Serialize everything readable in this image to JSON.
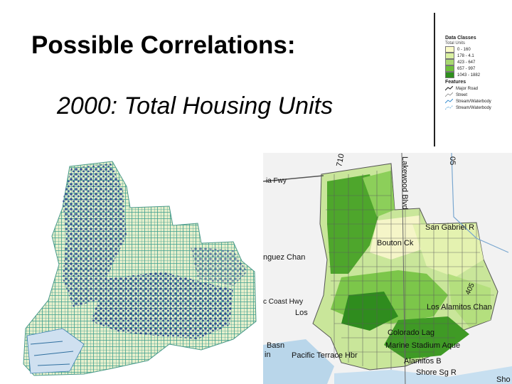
{
  "slide": {
    "title": "Possible Correlations:",
    "subtitle": "2000: Total Housing Units"
  },
  "legend": {
    "data_classes_title": "Data Classes",
    "data_classes_subtitle": "Total Units",
    "classes": [
      {
        "label": "0 - 160",
        "color": "#fbfbc8"
      },
      {
        "label": "178 - 4.1",
        "color": "#d9f0a0"
      },
      {
        "label": "423 - 647",
        "color": "#a8d870"
      },
      {
        "label": "657 - 997",
        "color": "#6dbf3a"
      },
      {
        "label": "1043 - 1882",
        "color": "#2e8f1d"
      }
    ],
    "features_title": "Features",
    "features": [
      {
        "label": "Major Road",
        "icon": "major-road-line-icon"
      },
      {
        "label": "Street",
        "icon": "street-line-icon"
      },
      {
        "label": "Stream/Waterbody",
        "icon": "stream-waterbody-icon"
      },
      {
        "label": "Stream/Waterbody",
        "icon": "stream-waterbody-line-icon"
      }
    ]
  },
  "map_right": {
    "labels": {
      "fwy": "ia Fwy",
      "i710": "710",
      "lakewood": "Lakewood Blvd",
      "i605": "05",
      "san_gabriel": "San Gabriel R",
      "bouton": "Bouton Ck",
      "dominguez": "nguez Chan",
      "i405": "405",
      "coast_hwy": "c Coast Hwy",
      "los": "Los",
      "los_alamitos": "Los Alamitos Chan",
      "colorado": "Colorado Lag",
      "marine": "Marine Stadium Aque",
      "alamitos_b": "Alamitos B",
      "basin": "Basn",
      "pacific_terrace": "Pacific Terrace Hbr",
      "shore_sg": "Shore Sg R",
      "sho": "Sho",
      "in": "in"
    }
  }
}
